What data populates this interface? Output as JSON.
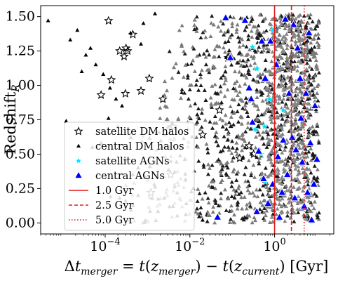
{
  "chart_data": {
    "type": "scatter",
    "title": "",
    "xlabel": "Δt_merger = t(z_merger) − t(z_current) [Gyr]",
    "ylabel": "Redshift_R",
    "x_scale": "log",
    "xlim": [
      3e-06,
      25
    ],
    "ylim": [
      -0.08,
      1.58
    ],
    "x_ticks": [
      {
        "value": 0.0001,
        "base": "10",
        "exp": "−4"
      },
      {
        "value": 0.01,
        "base": "10",
        "exp": "−2"
      },
      {
        "value": 1,
        "base": "10",
        "exp": "0"
      }
    ],
    "y_ticks": [
      {
        "value": 0.0,
        "label": "0.00"
      },
      {
        "value": 0.25,
        "label": "0.25"
      },
      {
        "value": 0.5,
        "label": "0.50"
      },
      {
        "value": 0.75,
        "label": "0.75"
      },
      {
        "value": 1.0,
        "label": "1.00"
      },
      {
        "value": 1.25,
        "label": "1.25"
      },
      {
        "value": 1.5,
        "label": "1.50"
      }
    ],
    "grid": false,
    "legend_position": "lower-left",
    "legend": [
      {
        "label": "satellite  DM halos",
        "marker": "star-outline",
        "color": "#000000"
      },
      {
        "label": "central DM halos",
        "marker": "triangle",
        "color": "#000000"
      },
      {
        "label": "satellite AGNs",
        "marker": "star",
        "color": "#00e5ff"
      },
      {
        "label": "central AGNs",
        "marker": "triangle",
        "color": "#0000ff"
      },
      {
        "label": "1.0 Gyr",
        "line": "solid",
        "color": "#e31a1c"
      },
      {
        "label": "2.5 Gyr",
        "line": "dashed",
        "color": "#e31a1c"
      },
      {
        "label": "5.0 Gyr",
        "line": "dotted",
        "color": "#e31a1c"
      }
    ],
    "vertical_lines": [
      {
        "x": 1.0,
        "style": "solid",
        "color": "#e31a1c"
      },
      {
        "x": 2.5,
        "style": "dashed",
        "color": "#e31a1c"
      },
      {
        "x": 5.0,
        "style": "dotted",
        "color": "#e31a1c"
      }
    ],
    "series": [
      {
        "name": "satellite  DM halos",
        "marker": "star-outline",
        "points": [
          [
            0.00012,
            1.47
          ],
          [
            0.00022,
            1.25
          ],
          [
            0.00028,
            1.21
          ],
          [
            0.00031,
            1.27
          ],
          [
            0.00034,
            1.25
          ],
          [
            0.00045,
            1.37
          ],
          [
            8e-05,
            0.93
          ],
          [
            0.00014,
            1.04
          ],
          [
            0.0003,
            0.94
          ],
          [
            0.0007,
            0.96
          ],
          [
            0.0011,
            1.05
          ],
          [
            0.0023,
            0.9
          ],
          [
            0.004,
            0.7
          ],
          [
            0.02,
            0.64
          ],
          [
            0.05,
            0.82
          ],
          [
            0.08,
            1.2
          ],
          [
            0.15,
            0.47
          ],
          [
            0.25,
            0.56
          ],
          [
            0.32,
            0.5
          ],
          [
            0.0035,
            0.35
          ],
          [
            0.0012,
            0.22
          ]
        ]
      },
      {
        "name": "central DM halos",
        "marker": "triangle",
        "points": [
          [
            4.5e-06,
            1.47
          ],
          [
            2.2e-05,
            1.4
          ],
          [
            1.5e-05,
            1.33
          ],
          [
            4.5e-05,
            1.27
          ],
          [
            3.5e-05,
            1.22
          ],
          [
            6e-05,
            1.15
          ],
          [
            2.8e-05,
            1.1
          ],
          [
            9e-05,
            1.08
          ],
          [
            0.00013,
            0.98
          ],
          [
            0.00018,
            0.9
          ],
          [
            0.00025,
            0.85
          ],
          [
            0.00012,
            0.76
          ],
          [
            0.0002,
            0.7
          ],
          [
            0.0004,
            0.62
          ],
          [
            8e-05,
            0.58
          ],
          [
            0.0003,
            0.46
          ],
          [
            0.0006,
            0.4
          ],
          [
            0.0009,
            0.33
          ],
          [
            0.0015,
            0.26
          ],
          [
            0.0025,
            0.18
          ],
          [
            5e-05,
            0.55
          ],
          [
            1.2e-05,
            0.74
          ],
          [
            0.0008,
            1.45
          ],
          [
            0.0015,
            1.52
          ],
          [
            0.0004,
            1.38
          ],
          [
            0.0007,
            1.3
          ],
          [
            0.004,
            0.12
          ],
          [
            0.008,
            0.06
          ],
          [
            0.02,
            0.02
          ],
          [
            0.012,
            0.25
          ],
          [
            0.0006,
            0.2
          ]
        ]
      },
      {
        "name": "satellite AGNs",
        "marker": "star",
        "points": [
          [
            0.35,
            0.68
          ],
          [
            0.48,
            0.5
          ],
          [
            0.38,
            1.12
          ],
          [
            0.58,
            0.7
          ],
          [
            0.75,
            0.9
          ],
          [
            0.3,
            1.28
          ],
          [
            0.6,
            0.3
          ],
          [
            0.9,
            1.4
          ],
          [
            1.6,
            0.82
          ]
        ]
      },
      {
        "name": "central AGNs",
        "marker": "triangle",
        "points": [
          [
            0.045,
            0.04
          ],
          [
            0.09,
            1.2
          ],
          [
            0.07,
            1.49
          ],
          [
            0.2,
            1.47
          ],
          [
            0.25,
            0.98
          ],
          [
            0.3,
            0.73
          ],
          [
            0.42,
            0.52
          ],
          [
            0.55,
            0.32
          ],
          [
            0.7,
            0.14
          ],
          [
            0.38,
            0.08
          ],
          [
            0.28,
            0.9
          ],
          [
            0.6,
            1.05
          ],
          [
            0.8,
            1.32
          ],
          [
            1.1,
            1.15
          ],
          [
            1.2,
            0.48
          ],
          [
            1.5,
            0.22
          ],
          [
            1.3,
            0.04
          ],
          [
            1.8,
            1.48
          ],
          [
            2.2,
            0.94
          ],
          [
            2.6,
            0.62
          ],
          [
            2.0,
            0.35
          ],
          [
            3.0,
            0.18
          ],
          [
            3.5,
            1.27
          ],
          [
            4.0,
            1.05
          ],
          [
            4.2,
            0.76
          ],
          [
            4.5,
            0.44
          ],
          [
            5.0,
            0.12
          ],
          [
            5.5,
            0.94
          ],
          [
            6.5,
            1.38
          ],
          [
            7.0,
            0.58
          ],
          [
            7.5,
            0.02
          ],
          [
            8.5,
            0.28
          ],
          [
            9.0,
            0.85
          ],
          [
            10.0,
            0.46
          ],
          [
            6.0,
            0.22
          ],
          [
            3.2,
            0.53
          ],
          [
            1.6,
            0.6
          ],
          [
            0.9,
            0.28
          ],
          [
            2.8,
            1.44
          ],
          [
            0.5,
            1.32
          ]
        ]
      }
    ]
  }
}
